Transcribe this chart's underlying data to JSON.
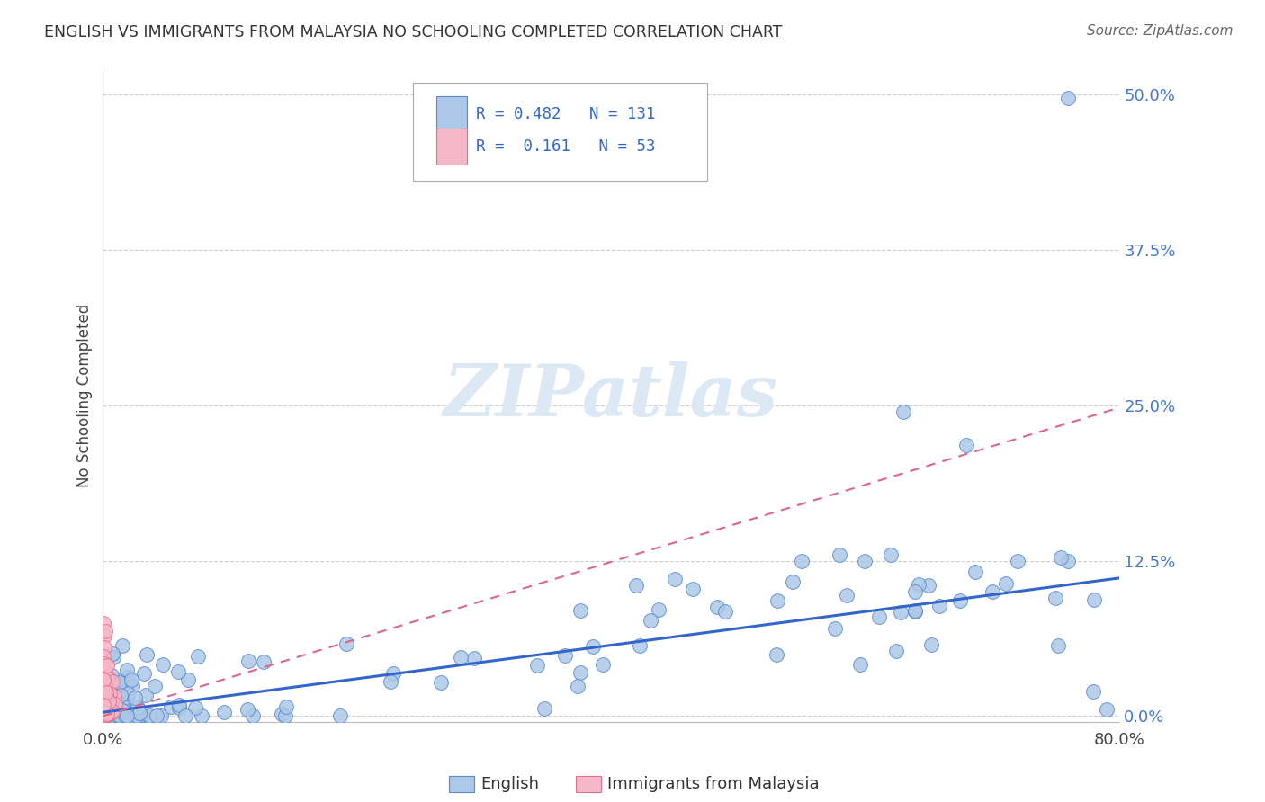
{
  "title": "ENGLISH VS IMMIGRANTS FROM MALAYSIA NO SCHOOLING COMPLETED CORRELATION CHART",
  "source": "Source: ZipAtlas.com",
  "ylabel": "No Schooling Completed",
  "xlim": [
    0,
    0.8
  ],
  "ylim": [
    -0.005,
    0.52
  ],
  "yticks": [
    0.0,
    0.125,
    0.25,
    0.375,
    0.5
  ],
  "ytick_labels": [
    "0.0%",
    "12.5%",
    "25.0%",
    "37.5%",
    "50.0%"
  ],
  "english_R": "0.482",
  "english_N": "131",
  "malaysia_R": "0.161",
  "malaysia_N": "53",
  "english_color": "#adc8e8",
  "english_edge_color": "#5588cc",
  "malaysia_color": "#f5b8c8",
  "malaysia_edge_color": "#dd7090",
  "english_line_color": "#3366cc",
  "malaysia_line_color": "#dd6688",
  "grid_color": "#cccccc",
  "background_color": "#ffffff",
  "watermark_color": "#dde8f5",
  "english_line_intercept": 0.003,
  "english_line_slope": 0.135,
  "malaysia_line_intercept": 0.0,
  "malaysia_line_slope": 0.31
}
